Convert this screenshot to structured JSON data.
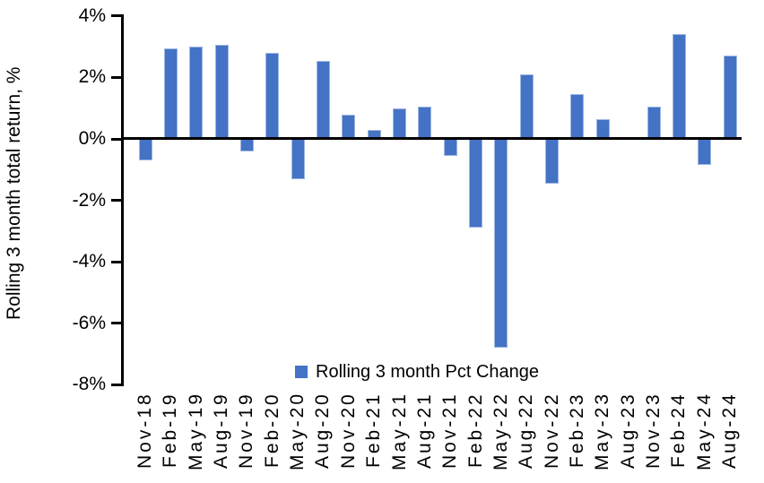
{
  "chart_data": {
    "type": "bar",
    "title": "",
    "ylabel": "Rolling 3 month total return, %",
    "xlabel": "",
    "legend_label": "Rolling 3 month Pct Change",
    "legend_position": "bottom-center",
    "ylim": [
      -8,
      4
    ],
    "grid": false,
    "bar_color": "#4472C4",
    "bar_edge_color": "#9DB6E4",
    "axis_color": "#000000",
    "yticks": [
      {
        "label": "4%",
        "value": 4
      },
      {
        "label": "2%",
        "value": 2
      },
      {
        "label": "0%",
        "value": 0
      },
      {
        "label": "-2%",
        "value": -2
      },
      {
        "label": "-4%",
        "value": -4
      },
      {
        "label": "-6%",
        "value": -6
      },
      {
        "label": "-8%",
        "value": -8
      }
    ],
    "categories": [
      "Nov-18",
      "Feb-19",
      "May-19",
      "Aug-19",
      "Nov-19",
      "Feb-20",
      "May-20",
      "Aug-20",
      "Nov-20",
      "Feb-21",
      "May-21",
      "Aug-21",
      "Nov-21",
      "Feb-22",
      "May-22",
      "Aug-22",
      "Nov-22",
      "Feb-23",
      "May-23",
      "Aug-23",
      "Nov-23",
      "Feb-24",
      "May-24",
      "Aug-24"
    ],
    "values": [
      -0.7,
      2.95,
      3.0,
      3.05,
      -0.4,
      2.8,
      -1.3,
      2.55,
      0.8,
      0.3,
      1.0,
      1.05,
      -0.55,
      -2.9,
      -6.8,
      2.1,
      -1.45,
      1.45,
      0.65,
      0.0,
      1.05,
      3.4,
      -0.85,
      2.7
    ]
  }
}
